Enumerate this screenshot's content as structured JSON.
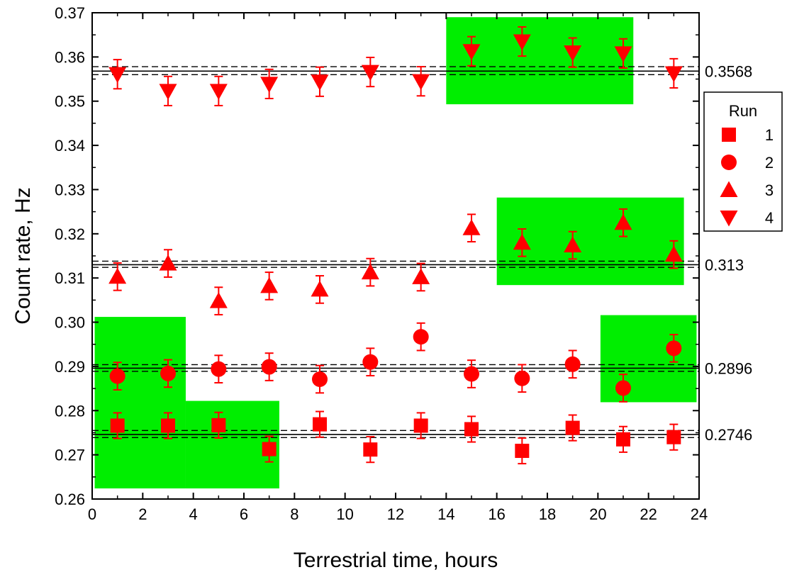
{
  "chart_data": {
    "type": "scatter",
    "xlabel": "Terrestrial time, hours",
    "ylabel": "Count rate, Hz",
    "xlim": [
      0,
      24
    ],
    "ylim": [
      0.26,
      0.37
    ],
    "x_ticks": [
      "0",
      "2",
      "4",
      "6",
      "8",
      "10",
      "12",
      "14",
      "16",
      "18",
      "20",
      "22",
      "24"
    ],
    "y_ticks": [
      "0.26",
      "0.27",
      "0.28",
      "0.29",
      "0.30",
      "0.31",
      "0.32",
      "0.33",
      "0.34",
      "0.35",
      "0.36",
      "0.37"
    ],
    "grid": false,
    "legend": {
      "title": "Run",
      "placement": "right"
    },
    "color": "#ff0000",
    "highlight_color": "#00ee00",
    "series": [
      {
        "name": "1",
        "marker": "square",
        "x": [
          1,
          3,
          5,
          7,
          9,
          11,
          13,
          15,
          17,
          19,
          21,
          23
        ],
        "y": [
          0.2766,
          0.2766,
          0.2767,
          0.2713,
          0.2769,
          0.2712,
          0.2766,
          0.2758,
          0.2709,
          0.2761,
          0.2735,
          0.274
        ],
        "err": [
          0.0029,
          0.0029,
          0.0029,
          0.0029,
          0.0029,
          0.0029,
          0.0029,
          0.0029,
          0.0029,
          0.0029,
          0.0029,
          0.0029
        ]
      },
      {
        "name": "2",
        "marker": "circle",
        "x": [
          1,
          3,
          5,
          7,
          9,
          11,
          13,
          15,
          17,
          19,
          21,
          23
        ],
        "y": [
          0.2878,
          0.2884,
          0.2894,
          0.2899,
          0.2871,
          0.291,
          0.2967,
          0.2883,
          0.2873,
          0.2905,
          0.2851,
          0.2941
        ],
        "err": [
          0.0031,
          0.0031,
          0.0031,
          0.0031,
          0.0031,
          0.0031,
          0.0031,
          0.0031,
          0.0031,
          0.0031,
          0.0031,
          0.0031
        ]
      },
      {
        "name": "3",
        "marker": "triangle-up",
        "x": [
          1,
          3,
          5,
          7,
          9,
          11,
          13,
          15,
          17,
          19,
          21,
          23
        ],
        "y": [
          0.3103,
          0.3133,
          0.3048,
          0.3082,
          0.3074,
          0.3113,
          0.3102,
          0.3213,
          0.318,
          0.3174,
          0.3225,
          0.3153
        ],
        "err": [
          0.0031,
          0.0031,
          0.0031,
          0.0031,
          0.0031,
          0.0031,
          0.0031,
          0.0031,
          0.0031,
          0.0031,
          0.0031,
          0.0031
        ]
      },
      {
        "name": "4",
        "marker": "triangle-down",
        "x": [
          1,
          3,
          5,
          7,
          9,
          11,
          13,
          15,
          17,
          19,
          21,
          23
        ],
        "y": [
          0.3561,
          0.3523,
          0.3523,
          0.3539,
          0.3544,
          0.3566,
          0.3545,
          0.3613,
          0.3635,
          0.361,
          0.3608,
          0.3563
        ],
        "err": [
          0.0033,
          0.0033,
          0.0033,
          0.0033,
          0.0033,
          0.0033,
          0.0033,
          0.0033,
          0.0033,
          0.0033,
          0.0033,
          0.0033
        ]
      }
    ],
    "reference_lines": [
      {
        "label": "0.3568",
        "value": 0.3568,
        "band": [
          0.356,
          0.3578
        ]
      },
      {
        "label": "0.313",
        "value": 0.313,
        "band": [
          0.3124,
          0.3138
        ]
      },
      {
        "label": "0.2896",
        "value": 0.2896,
        "band": [
          0.2889,
          0.2904
        ]
      },
      {
        "label": "0.2746",
        "value": 0.2746,
        "band": [
          0.2739,
          0.2755
        ]
      }
    ],
    "highlight_regions": [
      {
        "x": [
          14.0,
          21.4
        ],
        "y": [
          0.3493,
          0.369
        ]
      },
      {
        "x": [
          16.0,
          23.4
        ],
        "y": [
          0.3084,
          0.3282
        ]
      },
      {
        "x": [
          20.1,
          23.9
        ],
        "y": [
          0.2819,
          0.3016
        ]
      },
      {
        "x": [
          0.1,
          3.7
        ],
        "y": [
          0.2624,
          0.3012
        ]
      },
      {
        "x": [
          3.7,
          7.4
        ],
        "y": [
          0.2624,
          0.2822
        ]
      }
    ]
  }
}
